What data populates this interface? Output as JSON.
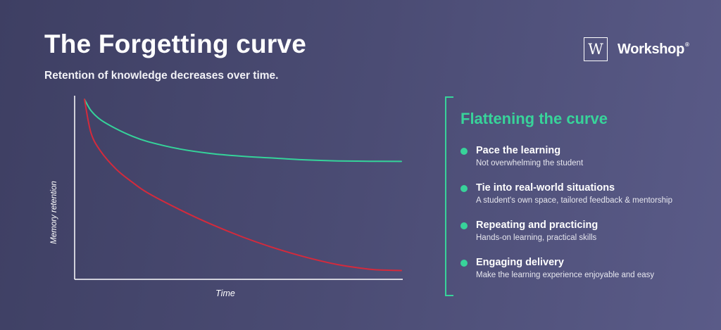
{
  "header": {
    "title": "The Forgetting curve",
    "subtitle": "Retention of knowledge decreases over time."
  },
  "brand": {
    "logo_letter": "W",
    "name": "Workshop",
    "registered_mark": "®"
  },
  "chart_data": {
    "type": "line",
    "xlabel": "Time",
    "ylabel": "Memory retention",
    "xlim": [
      0,
      1
    ],
    "ylim": [
      0,
      1
    ],
    "grid": false,
    "legend": "none",
    "x_ticks_labeled": false,
    "y_ticks_labeled": false,
    "series": [
      {
        "color": "#35d39a",
        "x": [
          0,
          0.02,
          0.05,
          0.1,
          0.15,
          0.2,
          0.3,
          0.4,
          0.5,
          0.6,
          0.7,
          0.8,
          0.9,
          1.0
        ],
        "y": [
          0.98,
          0.92,
          0.87,
          0.82,
          0.78,
          0.75,
          0.71,
          0.685,
          0.67,
          0.66,
          0.65,
          0.645,
          0.643,
          0.642
        ]
      },
      {
        "color": "#d42a3c",
        "x": [
          0,
          0.02,
          0.05,
          0.1,
          0.15,
          0.2,
          0.3,
          0.4,
          0.5,
          0.6,
          0.7,
          0.8,
          0.9,
          0.95,
          1.0
        ],
        "y": [
          0.98,
          0.8,
          0.7,
          0.6,
          0.53,
          0.47,
          0.38,
          0.3,
          0.23,
          0.17,
          0.12,
          0.08,
          0.055,
          0.05,
          0.048
        ]
      }
    ]
  },
  "panel": {
    "title": "Flattening the curve",
    "accent_color": "#38d39a",
    "items": [
      {
        "title": "Pace the learning",
        "desc": "Not overwhelming the student"
      },
      {
        "title": "Tie into real-world situations",
        "desc": "A student's own space, tailored feedback & mentorship"
      },
      {
        "title": "Repeating and practicing",
        "desc": "Hands-on learning, practical skills"
      },
      {
        "title": "Engaging delivery",
        "desc": "Make the learning experience enjoyable and easy"
      }
    ]
  }
}
